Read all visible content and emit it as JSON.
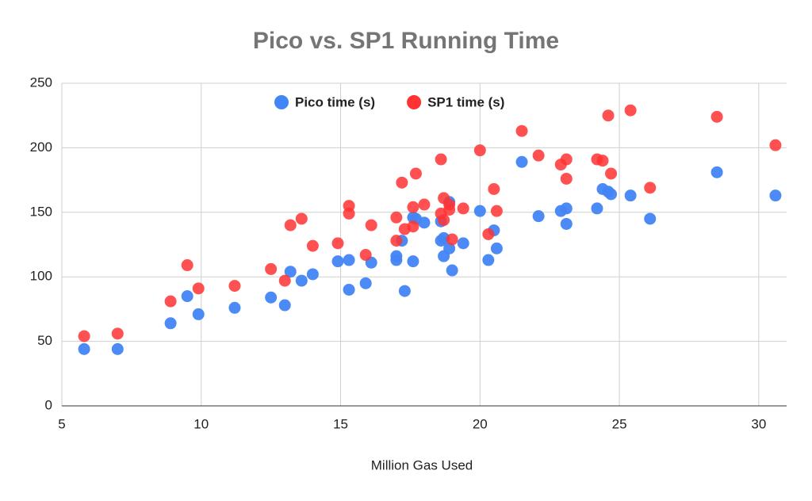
{
  "chart_data": {
    "type": "scatter",
    "title": "Pico vs. SP1 Running Time",
    "x_label": "Million Gas Used",
    "x": [
      5.8,
      7.0,
      8.9,
      9.5,
      9.9,
      11.2,
      12.5,
      13.0,
      13.2,
      13.6,
      14.0,
      14.9,
      15.3,
      15.3,
      15.9,
      16.1,
      17.0,
      17.0,
      17.2,
      17.3,
      17.6,
      17.6,
      17.7,
      18.0,
      18.6,
      18.6,
      18.7,
      18.7,
      18.9,
      18.9,
      19.0,
      19.4,
      20.0,
      20.3,
      20.5,
      20.6,
      21.5,
      22.1,
      22.9,
      23.1,
      23.1,
      24.2,
      24.4,
      24.6,
      24.7,
      25.4,
      26.1,
      28.5,
      30.6
    ],
    "series": [
      {
        "name": "Pico time (s)",
        "color": "#4285f4",
        "values": [
          44,
          44,
          64,
          85,
          71,
          76,
          84,
          78,
          104,
          97,
          102,
          112,
          113,
          90,
          95,
          111,
          116,
          113,
          128,
          89,
          112,
          146,
          145,
          142,
          143,
          128,
          130,
          116,
          158,
          122,
          105,
          126,
          151,
          113,
          136,
          122,
          189,
          147,
          151,
          153,
          141,
          153,
          168,
          166,
          164,
          163,
          145,
          181,
          163
        ]
      },
      {
        "name": "SP1 time (s)",
        "color": "#ff3333",
        "values": [
          54,
          56,
          81,
          109,
          91,
          93,
          106,
          97,
          140,
          145,
          124,
          126,
          155,
          149,
          117,
          140,
          146,
          128,
          173,
          137,
          139,
          154,
          180,
          156,
          191,
          149,
          161,
          144,
          156,
          152,
          129,
          153,
          198,
          133,
          168,
          151,
          213,
          194,
          187,
          191,
          176,
          191,
          190,
          225,
          180,
          229,
          169,
          224,
          202
        ]
      }
    ],
    "xlim": [
      5,
      31
    ],
    "ylim": [
      0,
      250
    ],
    "xticks": [
      5,
      10,
      15,
      20,
      25,
      30
    ],
    "yticks": [
      0,
      50,
      100,
      150,
      200,
      250
    ],
    "grid": true,
    "legend": "top"
  }
}
